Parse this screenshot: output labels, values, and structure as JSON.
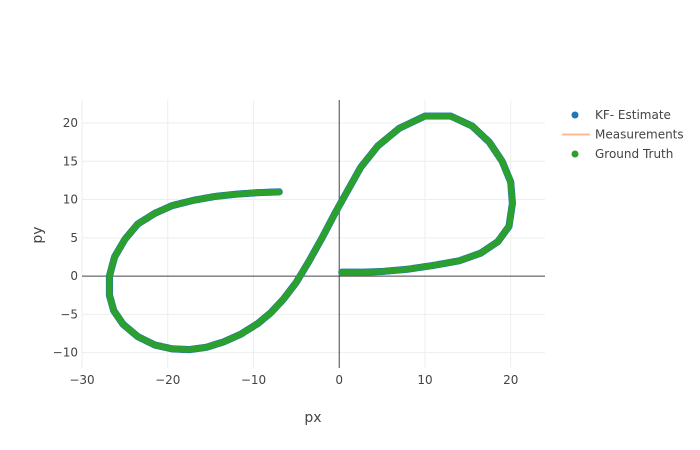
{
  "chart_data": {
    "type": "scatter",
    "xlabel": "px",
    "ylabel": "py",
    "xlim": [
      -30,
      24
    ],
    "ylim": [
      -12,
      23
    ],
    "x_ticks": [
      -30,
      -20,
      -10,
      0,
      10,
      20
    ],
    "y_ticks": [
      -10,
      -5,
      0,
      5,
      10,
      15,
      20
    ],
    "x_tick_labels": [
      "−30",
      "−20",
      "−10",
      "0",
      "10",
      "20"
    ],
    "y_tick_labels": [
      "−10",
      "−5",
      "0",
      "5",
      "10",
      "15",
      "20"
    ],
    "grid": true,
    "zero_lines": true,
    "legend_position": "top-right",
    "legend": [
      {
        "name": "KF- Estimate",
        "symbol": "dot",
        "color": "#1f77b4"
      },
      {
        "name": "Measurements",
        "symbol": "line",
        "color": "#ffbb99"
      },
      {
        "name": "Ground Truth",
        "symbol": "dot",
        "color": "#2ca02c"
      }
    ],
    "series": [
      {
        "name": "KF- Estimate",
        "mode": "markers",
        "color": "#1f77b4",
        "x": [
          -7.0,
          -9.5,
          -12.0,
          -14.5,
          -17.0,
          -19.5,
          -21.5,
          -23.5,
          -25.0,
          -26.2,
          -26.8,
          -26.8,
          -26.3,
          -25.2,
          -23.5,
          -21.5,
          -19.5,
          -17.5,
          -15.5,
          -13.5,
          -11.5,
          -9.5,
          -8.0,
          -6.5,
          -5.0,
          -3.5,
          -2.0,
          -0.5,
          1.0,
          2.5,
          4.5,
          7.0,
          10.0,
          13.0,
          15.5,
          17.5,
          19.0,
          20.0,
          20.2,
          19.8,
          18.5,
          16.5,
          14.0,
          11.0,
          8.0,
          5.0,
          2.5,
          0.3
        ],
        "y": [
          11.0,
          10.9,
          10.7,
          10.4,
          9.9,
          9.2,
          8.2,
          6.8,
          4.8,
          2.5,
          0.0,
          -2.5,
          -4.5,
          -6.3,
          -7.9,
          -9.0,
          -9.5,
          -9.6,
          -9.3,
          -8.6,
          -7.6,
          -6.2,
          -4.8,
          -3.0,
          -0.8,
          2.0,
          5.0,
          8.2,
          11.2,
          14.2,
          17.0,
          19.3,
          20.9,
          20.9,
          19.6,
          17.5,
          15.0,
          12.3,
          9.5,
          6.5,
          4.5,
          3.0,
          2.0,
          1.4,
          0.9,
          0.6,
          0.5,
          0.5
        ]
      },
      {
        "name": "Ground Truth",
        "mode": "markers",
        "color": "#2ca02c",
        "x": [
          -7.0,
          -9.5,
          -12.0,
          -14.5,
          -17.0,
          -19.5,
          -21.5,
          -23.5,
          -25.0,
          -26.2,
          -26.8,
          -26.8,
          -26.3,
          -25.2,
          -23.5,
          -21.5,
          -19.5,
          -17.5,
          -15.5,
          -13.5,
          -11.5,
          -9.5,
          -8.0,
          -6.5,
          -5.0,
          -3.5,
          -2.0,
          -0.5,
          1.0,
          2.5,
          4.5,
          7.0,
          10.0,
          13.0,
          15.5,
          17.5,
          19.0,
          20.0,
          20.2,
          19.8,
          18.5,
          16.5,
          14.0,
          11.0,
          8.0,
          5.0,
          2.5,
          0.3
        ],
        "y": [
          11.0,
          10.9,
          10.7,
          10.4,
          9.9,
          9.2,
          8.2,
          6.8,
          4.8,
          2.5,
          0.0,
          -2.5,
          -4.5,
          -6.3,
          -7.9,
          -9.0,
          -9.5,
          -9.6,
          -9.3,
          -8.6,
          -7.6,
          -6.2,
          -4.8,
          -3.0,
          -0.8,
          2.0,
          5.0,
          8.2,
          11.2,
          14.2,
          17.0,
          19.3,
          20.9,
          20.9,
          19.6,
          17.5,
          15.0,
          12.3,
          9.5,
          6.5,
          4.5,
          3.0,
          2.0,
          1.4,
          0.9,
          0.6,
          0.5,
          0.5
        ]
      }
    ]
  }
}
